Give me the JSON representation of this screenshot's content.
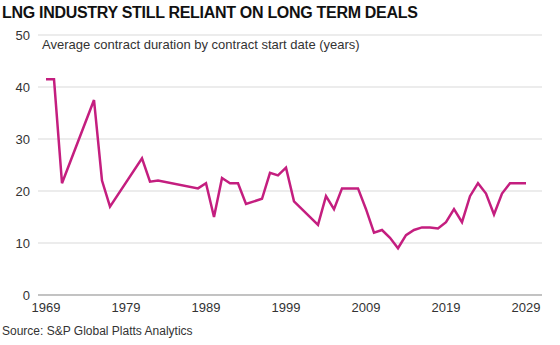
{
  "chart_data": {
    "type": "line",
    "title": "LNG INDUSTRY STILL RELIANT ON LONG TERM DEALS",
    "subtitle": "Average contract duration by contract start date (years)",
    "source": "Source: S&P Global Platts Analytics",
    "x": [
      1969,
      1970,
      1971,
      1975,
      1976,
      1977,
      1981,
      1982,
      1983,
      1988,
      1989,
      1990,
      1991,
      1992,
      1993,
      1994,
      1996,
      1997,
      1998,
      1999,
      2000,
      2003,
      2004,
      2005,
      2006,
      2007,
      2008,
      2009,
      2010,
      2011,
      2012,
      2013,
      2014,
      2015,
      2016,
      2017,
      2018,
      2019,
      2020,
      2021,
      2022,
      2023,
      2024,
      2025,
      2026,
      2027,
      2028,
      2029
    ],
    "series": [
      {
        "name": "Average contract duration",
        "color": "#c41e7f",
        "values": [
          41.5,
          41.5,
          21.5,
          37.5,
          22,
          17,
          26.3,
          21.8,
          22,
          20.5,
          21.5,
          15,
          22.5,
          21.5,
          21.5,
          17.5,
          18.5,
          23.5,
          23,
          24.5,
          18,
          13.5,
          19,
          16.5,
          20.5,
          20.5,
          20.5,
          16.5,
          12,
          12.5,
          11,
          9,
          11.5,
          12.5,
          13,
          13,
          12.8,
          14,
          16.5,
          14,
          19,
          21.5,
          19.5,
          15.5,
          19.5,
          21.5,
          21.5,
          21.5
        ]
      }
    ],
    "xlim": [
      1968,
      2031
    ],
    "xticks": [
      1969,
      1979,
      1989,
      1999,
      2009,
      2019,
      2029
    ],
    "ylim": [
      0,
      50
    ],
    "yticks": [
      0,
      10,
      20,
      30,
      40,
      50
    ],
    "grid": true
  }
}
